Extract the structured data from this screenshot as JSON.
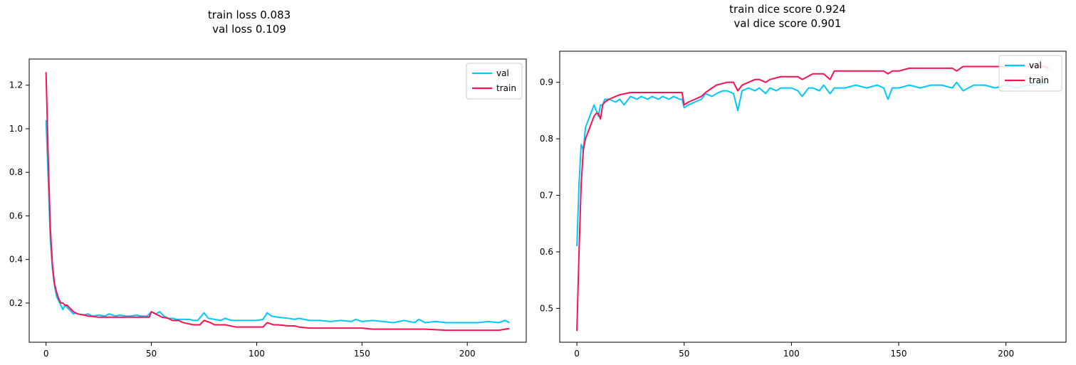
{
  "colors": {
    "val": "#00c8ff",
    "train": "#ff1150"
  },
  "chart_data": [
    {
      "type": "line",
      "title": "train loss 0.083\nval loss 0.109",
      "xlim": [
        -8,
        228
      ],
      "ylim": [
        0.02,
        1.32
      ],
      "xticks": [
        0,
        50,
        100,
        150,
        200
      ],
      "yticks": [
        0.2,
        0.4,
        0.6,
        0.8,
        1.0,
        1.2
      ],
      "xtick_labels": [
        "0",
        "50",
        "100",
        "150",
        "200"
      ],
      "ytick_labels": [
        "0.2",
        "0.4",
        "0.6",
        "0.8",
        "1.0",
        "1.2"
      ],
      "legend_position": "top-right",
      "series": [
        {
          "name": "val",
          "color": "#00c8ff",
          "x": [
            0,
            1,
            2,
            3,
            4,
            5,
            6,
            7,
            8,
            9,
            10,
            11,
            12,
            13,
            14,
            15,
            18,
            20,
            22,
            25,
            28,
            30,
            33,
            35,
            38,
            40,
            43,
            45,
            48,
            50,
            52,
            54,
            56,
            58,
            60,
            62,
            65,
            68,
            70,
            72,
            75,
            77,
            80,
            83,
            85,
            88,
            90,
            95,
            100,
            103,
            105,
            107,
            110,
            115,
            118,
            120,
            125,
            130,
            135,
            140,
            145,
            147,
            150,
            155,
            160,
            165,
            170,
            175,
            177,
            180,
            185,
            190,
            195,
            200,
            205,
            210,
            215,
            218,
            220
          ],
          "y": [
            1.04,
            0.78,
            0.5,
            0.36,
            0.28,
            0.23,
            0.21,
            0.19,
            0.17,
            0.19,
            0.18,
            0.17,
            0.16,
            0.15,
            0.155,
            0.15,
            0.145,
            0.15,
            0.14,
            0.145,
            0.14,
            0.15,
            0.14,
            0.145,
            0.14,
            0.14,
            0.145,
            0.14,
            0.14,
            0.16,
            0.15,
            0.16,
            0.14,
            0.13,
            0.13,
            0.125,
            0.125,
            0.125,
            0.12,
            0.12,
            0.155,
            0.13,
            0.125,
            0.12,
            0.13,
            0.12,
            0.12,
            0.12,
            0.12,
            0.125,
            0.155,
            0.14,
            0.135,
            0.13,
            0.125,
            0.13,
            0.12,
            0.12,
            0.115,
            0.12,
            0.115,
            0.125,
            0.115,
            0.12,
            0.115,
            0.11,
            0.12,
            0.11,
            0.125,
            0.11,
            0.115,
            0.11,
            0.11,
            0.11,
            0.11,
            0.115,
            0.11,
            0.12,
            0.11
          ]
        },
        {
          "name": "train",
          "color": "#ff1150",
          "x": [
            0,
            1,
            2,
            3,
            4,
            5,
            6,
            7,
            8,
            9,
            10,
            11,
            12,
            13,
            15,
            18,
            20,
            25,
            30,
            35,
            40,
            45,
            49,
            50,
            52,
            55,
            58,
            60,
            63,
            65,
            70,
            73,
            75,
            78,
            80,
            83,
            85,
            90,
            95,
            100,
            103,
            105,
            108,
            110,
            115,
            118,
            120,
            125,
            130,
            140,
            145,
            150,
            155,
            165,
            175,
            180,
            190,
            200,
            205,
            210,
            215,
            218,
            220
          ],
          "y": [
            1.26,
            0.88,
            0.55,
            0.38,
            0.29,
            0.25,
            0.22,
            0.2,
            0.2,
            0.19,
            0.19,
            0.18,
            0.17,
            0.16,
            0.15,
            0.145,
            0.14,
            0.135,
            0.135,
            0.135,
            0.135,
            0.135,
            0.135,
            0.16,
            0.15,
            0.135,
            0.13,
            0.12,
            0.12,
            0.11,
            0.1,
            0.1,
            0.12,
            0.11,
            0.1,
            0.1,
            0.1,
            0.09,
            0.09,
            0.09,
            0.09,
            0.11,
            0.1,
            0.1,
            0.095,
            0.095,
            0.09,
            0.085,
            0.085,
            0.085,
            0.085,
            0.085,
            0.08,
            0.08,
            0.08,
            0.08,
            0.075,
            0.075,
            0.075,
            0.075,
            0.075,
            0.08,
            0.083
          ]
        }
      ]
    },
    {
      "type": "line",
      "title": "train dice score 0.924\nval dice score 0.901",
      "xlim": [
        -8,
        228
      ],
      "ylim": [
        0.44,
        0.955
      ],
      "xticks": [
        0,
        50,
        100,
        150,
        200
      ],
      "yticks": [
        0.5,
        0.6,
        0.7,
        0.8,
        0.9
      ],
      "xtick_labels": [
        "0",
        "50",
        "100",
        "150",
        "200"
      ],
      "ytick_labels": [
        "0.5",
        "0.6",
        "0.7",
        "0.8",
        "0.9"
      ],
      "legend_position": "top-right",
      "series": [
        {
          "name": "val",
          "color": "#00c8ff",
          "x": [
            0,
            1,
            2,
            3,
            4,
            5,
            6,
            7,
            8,
            9,
            10,
            11,
            12,
            13,
            15,
            18,
            20,
            22,
            25,
            28,
            30,
            33,
            35,
            38,
            40,
            43,
            45,
            48,
            49,
            50,
            52,
            55,
            58,
            60,
            63,
            65,
            68,
            70,
            73,
            75,
            77,
            80,
            83,
            85,
            88,
            90,
            93,
            95,
            100,
            103,
            105,
            108,
            110,
            113,
            115,
            118,
            120,
            125,
            130,
            135,
            140,
            143,
            145,
            147,
            150,
            155,
            160,
            165,
            170,
            175,
            177,
            180,
            185,
            190,
            195,
            200,
            205,
            210,
            215,
            220
          ],
          "y": [
            0.61,
            0.72,
            0.79,
            0.78,
            0.82,
            0.83,
            0.84,
            0.85,
            0.86,
            0.85,
            0.84,
            0.86,
            0.86,
            0.87,
            0.87,
            0.865,
            0.87,
            0.86,
            0.875,
            0.87,
            0.875,
            0.87,
            0.875,
            0.87,
            0.875,
            0.87,
            0.875,
            0.87,
            0.87,
            0.855,
            0.86,
            0.865,
            0.87,
            0.88,
            0.875,
            0.88,
            0.885,
            0.885,
            0.88,
            0.85,
            0.885,
            0.89,
            0.885,
            0.89,
            0.88,
            0.89,
            0.885,
            0.89,
            0.89,
            0.885,
            0.875,
            0.89,
            0.89,
            0.885,
            0.895,
            0.88,
            0.89,
            0.89,
            0.895,
            0.89,
            0.895,
            0.89,
            0.87,
            0.89,
            0.89,
            0.895,
            0.89,
            0.895,
            0.895,
            0.89,
            0.9,
            0.885,
            0.895,
            0.895,
            0.89,
            0.895,
            0.89,
            0.895,
            0.895,
            0.9
          ]
        },
        {
          "name": "train",
          "color": "#ff1150",
          "x": [
            0,
            1,
            2,
            3,
            4,
            5,
            6,
            7,
            8,
            9,
            10,
            11,
            12,
            13,
            15,
            18,
            20,
            25,
            30,
            35,
            40,
            45,
            48,
            49,
            50,
            52,
            55,
            58,
            60,
            63,
            65,
            70,
            73,
            75,
            77,
            80,
            83,
            85,
            88,
            90,
            95,
            100,
            103,
            105,
            110,
            115,
            118,
            120,
            125,
            130,
            140,
            143,
            145,
            147,
            150,
            155,
            160,
            165,
            170,
            175,
            177,
            180,
            185,
            190,
            200,
            210,
            215,
            218,
            220
          ],
          "y": [
            0.46,
            0.6,
            0.72,
            0.78,
            0.8,
            0.81,
            0.82,
            0.83,
            0.84,
            0.845,
            0.845,
            0.835,
            0.86,
            0.865,
            0.87,
            0.875,
            0.878,
            0.882,
            0.882,
            0.882,
            0.882,
            0.882,
            0.882,
            0.882,
            0.86,
            0.865,
            0.87,
            0.875,
            0.882,
            0.89,
            0.895,
            0.9,
            0.9,
            0.885,
            0.895,
            0.9,
            0.905,
            0.905,
            0.9,
            0.905,
            0.91,
            0.91,
            0.91,
            0.905,
            0.915,
            0.915,
            0.905,
            0.92,
            0.92,
            0.92,
            0.92,
            0.92,
            0.915,
            0.92,
            0.92,
            0.925,
            0.925,
            0.925,
            0.925,
            0.925,
            0.92,
            0.928,
            0.928,
            0.928,
            0.928,
            0.928,
            0.928,
            0.928,
            0.924
          ]
        }
      ]
    }
  ]
}
